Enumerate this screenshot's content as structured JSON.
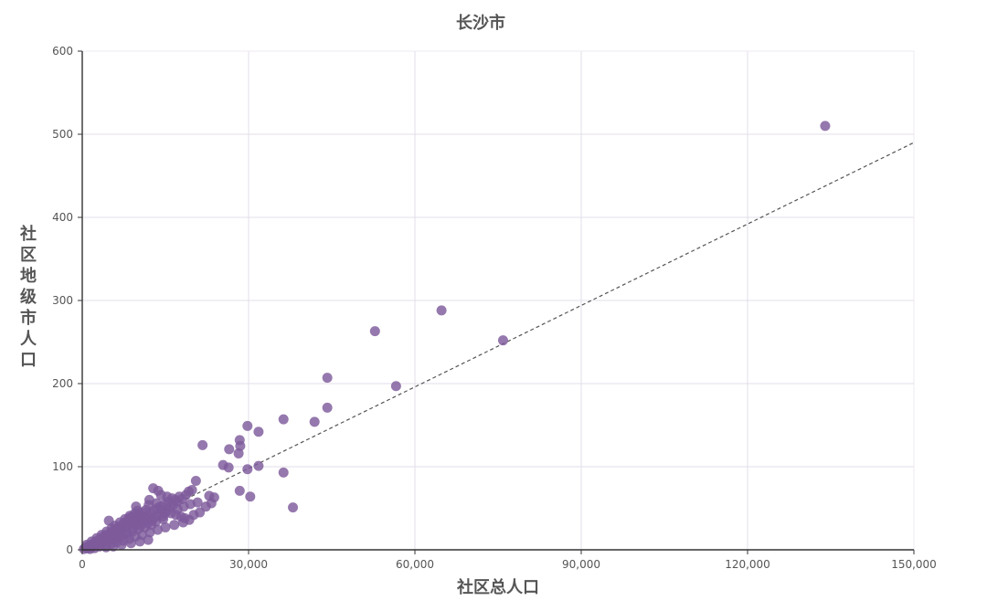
{
  "chart_data": {
    "type": "scatter",
    "title": "长沙市",
    "xlabel": "社区总人口",
    "ylabel": "社区地级市人口",
    "xlim": [
      0,
      150000
    ],
    "ylim": [
      0,
      600
    ],
    "x_ticks": [
      0,
      30000,
      60000,
      90000,
      120000,
      150000
    ],
    "y_ticks": [
      0,
      100,
      200,
      300,
      400,
      500,
      600
    ],
    "x_tick_labels": [
      "0",
      "30,000",
      "60,000",
      "90,000",
      "120,000",
      "150,000"
    ],
    "y_tick_labels": [
      "0",
      "100",
      "200",
      "300",
      "400",
      "500",
      "600"
    ],
    "grid": true,
    "trendline": {
      "style": "dashed",
      "from": [
        0,
        0
      ],
      "to": [
        150000,
        490
      ]
    },
    "marker_color": "#7e5a9b",
    "points": [
      [
        134000,
        510
      ],
      [
        64800,
        288
      ],
      [
        52800,
        263
      ],
      [
        75900,
        252
      ],
      [
        44200,
        207
      ],
      [
        56600,
        197
      ],
      [
        44200,
        171
      ],
      [
        41900,
        154
      ],
      [
        36300,
        157
      ],
      [
        29800,
        149
      ],
      [
        31800,
        142
      ],
      [
        28400,
        132
      ],
      [
        28500,
        125
      ],
      [
        28200,
        116
      ],
      [
        26500,
        121
      ],
      [
        21700,
        126
      ],
      [
        25400,
        102
      ],
      [
        26400,
        99
      ],
      [
        29800,
        97
      ],
      [
        31800,
        101
      ],
      [
        36300,
        93
      ],
      [
        28400,
        71
      ],
      [
        30300,
        64
      ],
      [
        38000,
        51
      ],
      [
        20500,
        83
      ],
      [
        19800,
        72
      ],
      [
        19200,
        70
      ],
      [
        18700,
        66
      ],
      [
        17500,
        64
      ],
      [
        16800,
        60
      ],
      [
        16200,
        62
      ],
      [
        15500,
        58
      ],
      [
        14800,
        55
      ],
      [
        14100,
        52
      ],
      [
        13400,
        56
      ],
      [
        12800,
        74
      ],
      [
        13700,
        71
      ],
      [
        12100,
        60
      ],
      [
        11500,
        48
      ],
      [
        10900,
        45
      ],
      [
        10300,
        43
      ],
      [
        9700,
        52
      ],
      [
        9000,
        40
      ],
      [
        8400,
        38
      ],
      [
        7800,
        33
      ],
      [
        7200,
        30
      ],
      [
        6600,
        27
      ],
      [
        6000,
        25
      ],
      [
        5400,
        22
      ],
      [
        4800,
        35
      ],
      [
        4200,
        18
      ],
      [
        3600,
        15
      ],
      [
        3000,
        12
      ],
      [
        2400,
        10
      ],
      [
        1800,
        7
      ],
      [
        1200,
        5
      ],
      [
        600,
        3
      ],
      [
        300,
        1
      ],
      [
        900,
        2
      ],
      [
        1500,
        4
      ],
      [
        2100,
        6
      ],
      [
        2700,
        8
      ],
      [
        3300,
        9
      ],
      [
        3900,
        11
      ],
      [
        4500,
        13
      ],
      [
        5100,
        16
      ],
      [
        5700,
        19
      ],
      [
        6300,
        21
      ],
      [
        6900,
        24
      ],
      [
        7500,
        26
      ],
      [
        8100,
        29
      ],
      [
        8700,
        31
      ],
      [
        9300,
        34
      ],
      [
        9900,
        36
      ],
      [
        10500,
        38
      ],
      [
        11100,
        39
      ],
      [
        11700,
        41
      ],
      [
        12300,
        44
      ],
      [
        12900,
        47
      ],
      [
        13500,
        50
      ],
      [
        14400,
        48
      ],
      [
        15200,
        46
      ],
      [
        16000,
        44
      ],
      [
        16900,
        42
      ],
      [
        17800,
        40
      ],
      [
        18500,
        38
      ],
      [
        19300,
        36
      ],
      [
        20100,
        42
      ],
      [
        21200,
        45
      ],
      [
        22300,
        52
      ],
      [
        23300,
        56
      ],
      [
        23800,
        63
      ],
      [
        22900,
        65
      ],
      [
        20800,
        57
      ],
      [
        19500,
        55
      ],
      [
        18300,
        52
      ],
      [
        17200,
        49
      ],
      [
        15800,
        51
      ],
      [
        14600,
        37
      ],
      [
        13300,
        34
      ],
      [
        12500,
        30
      ],
      [
        11300,
        27
      ],
      [
        10100,
        25
      ],
      [
        9100,
        22
      ],
      [
        8200,
        19
      ],
      [
        7300,
        17
      ],
      [
        6400,
        14
      ],
      [
        5500,
        12
      ],
      [
        4600,
        10
      ],
      [
        3700,
        8
      ],
      [
        2800,
        6
      ],
      [
        1900,
        4
      ],
      [
        1000,
        2
      ],
      [
        5000,
        20
      ],
      [
        6100,
        23
      ],
      [
        7000,
        28
      ],
      [
        8000,
        32
      ],
      [
        8900,
        35
      ],
      [
        9800,
        30
      ],
      [
        10700,
        33
      ],
      [
        11600,
        37
      ],
      [
        12600,
        35
      ],
      [
        13800,
        42
      ],
      [
        14900,
        44
      ],
      [
        16400,
        54
      ],
      [
        17100,
        58
      ],
      [
        18000,
        61
      ],
      [
        15300,
        64
      ],
      [
        14200,
        66
      ],
      [
        12000,
        54
      ],
      [
        10000,
        47
      ],
      [
        9500,
        44
      ],
      [
        8600,
        41
      ],
      [
        7700,
        37
      ],
      [
        6800,
        33
      ],
      [
        5900,
        29
      ],
      [
        5300,
        26
      ],
      [
        4400,
        22
      ],
      [
        3500,
        18
      ],
      [
        2600,
        14
      ],
      [
        1700,
        10
      ],
      [
        800,
        6
      ],
      [
        3100,
        4
      ],
      [
        4100,
        5
      ],
      [
        5200,
        7
      ],
      [
        6200,
        9
      ],
      [
        7400,
        11
      ],
      [
        8500,
        13
      ],
      [
        9600,
        16
      ],
      [
        10800,
        18
      ],
      [
        12200,
        21
      ],
      [
        13600,
        24
      ],
      [
        15000,
        27
      ],
      [
        16600,
        30
      ],
      [
        18200,
        33
      ],
      [
        11900,
        12
      ],
      [
        10400,
        10
      ],
      [
        8800,
        8
      ],
      [
        7100,
        6
      ],
      [
        5600,
        4
      ],
      [
        4300,
        3
      ],
      [
        2200,
        2
      ],
      [
        1400,
        1
      ],
      [
        6700,
        15
      ],
      [
        7900,
        20
      ],
      [
        9200,
        26
      ],
      [
        10600,
        29
      ],
      [
        11800,
        32
      ],
      [
        13100,
        39
      ],
      [
        14500,
        40
      ]
    ]
  }
}
